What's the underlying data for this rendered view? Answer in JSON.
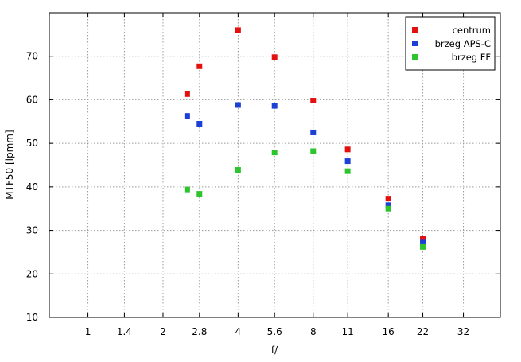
{
  "chart_data": {
    "type": "scatter",
    "xlabel": "f/",
    "ylabel": "MTF50 [lpmm]",
    "x_scale": "log",
    "x_ticks": [
      "1",
      "1.4",
      "2",
      "2.8",
      "4",
      "5.6",
      "8",
      "11",
      "16",
      "22",
      "32"
    ],
    "x_range": [
      0.7,
      45
    ],
    "ylim": [
      10,
      80
    ],
    "y_ticks": [
      "10",
      "20",
      "30",
      "40",
      "50",
      "60",
      "70"
    ],
    "grid": true,
    "legend_position": "top-right",
    "series": [
      {
        "name": "centrum",
        "color": "#e31010",
        "x": [
          2.5,
          2.8,
          4,
          5.6,
          8,
          11,
          16,
          22
        ],
        "y": [
          61.3,
          67.7,
          76.0,
          69.8,
          59.8,
          48.6,
          37.3,
          28.0
        ]
      },
      {
        "name": "brzeg APS-C",
        "color": "#1c3fd6",
        "x": [
          2.5,
          2.8,
          4,
          5.6,
          8,
          11,
          16,
          22
        ],
        "y": [
          56.3,
          54.5,
          58.8,
          58.6,
          52.5,
          45.9,
          35.8,
          27.2
        ]
      },
      {
        "name": "brzeg FF",
        "color": "#2ec42e",
        "x": [
          2.5,
          2.8,
          4,
          5.6,
          8,
          11,
          16,
          22
        ],
        "y": [
          39.4,
          38.4,
          43.9,
          47.9,
          48.2,
          43.6,
          35.0,
          26.2
        ]
      }
    ]
  }
}
